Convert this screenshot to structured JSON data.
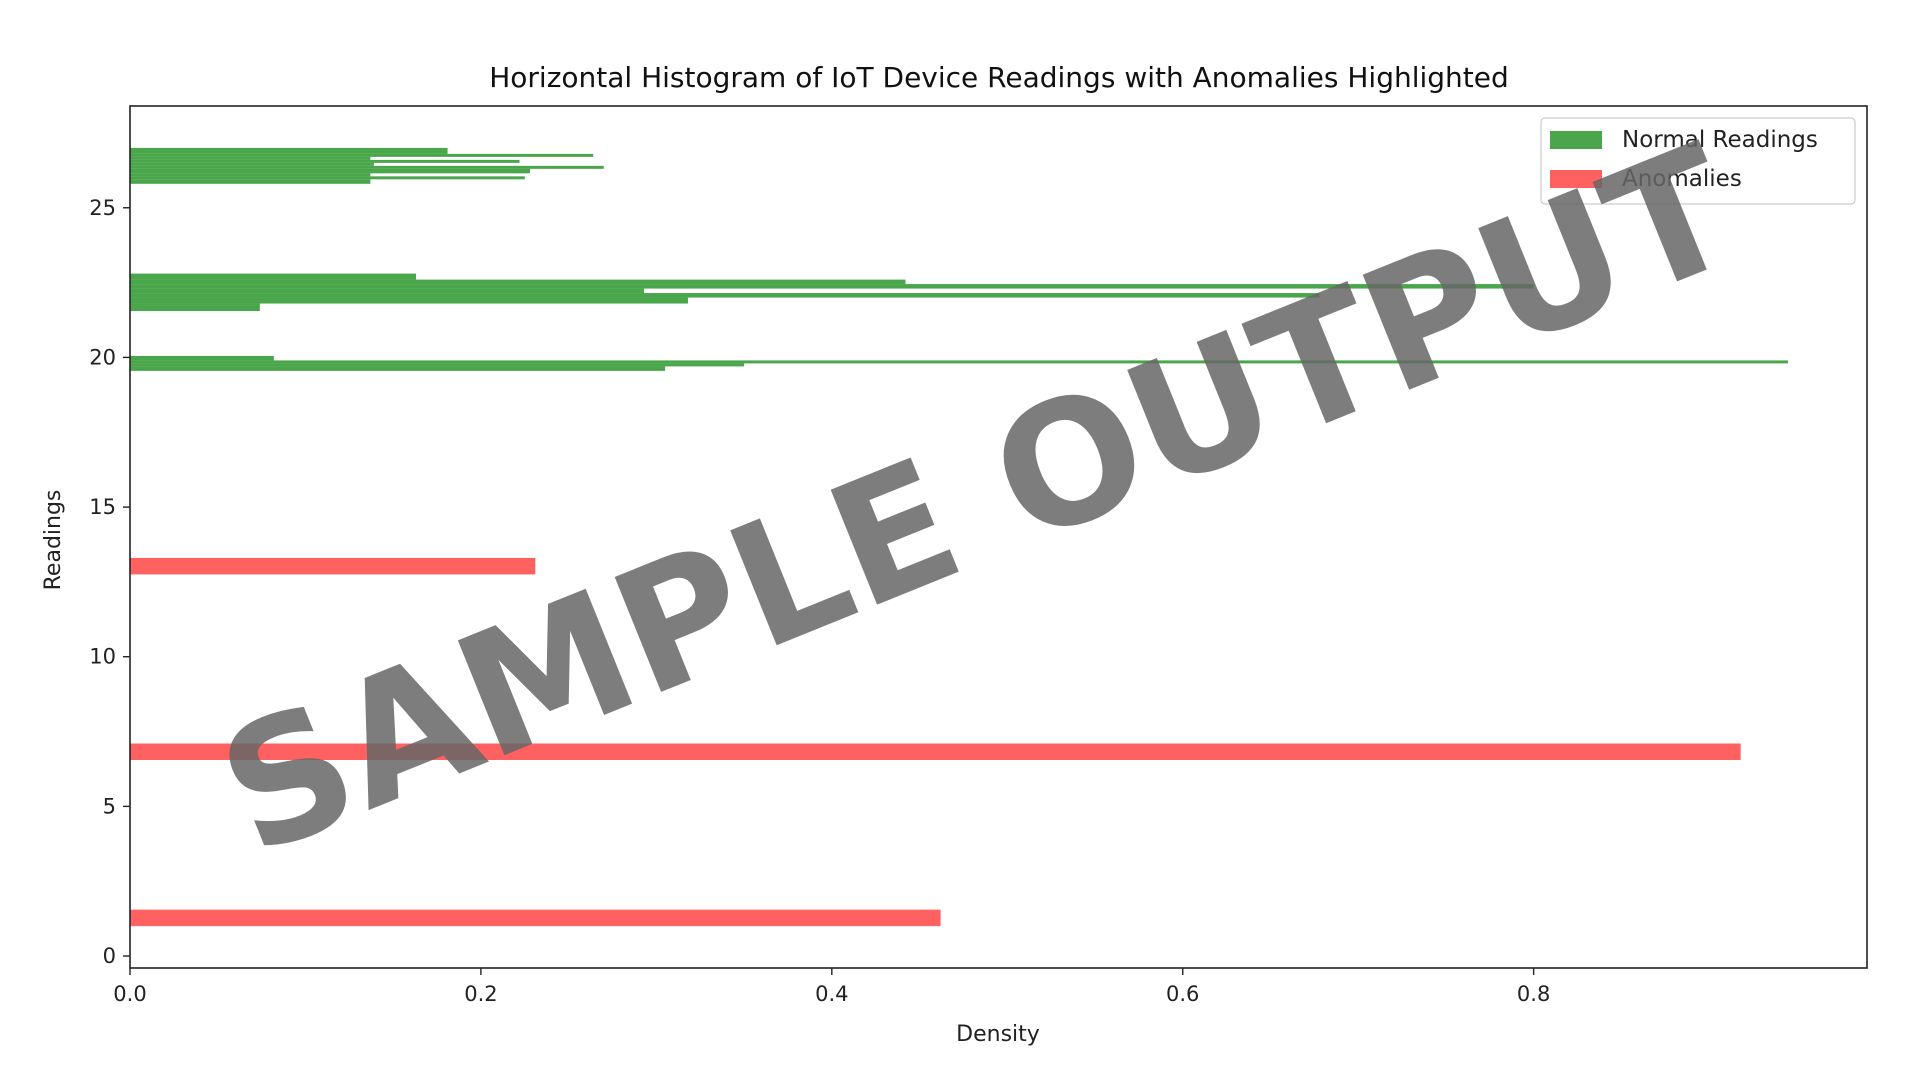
{
  "chart_data": {
    "type": "bar",
    "orientation": "horizontal",
    "title": "Horizontal Histogram of IoT Device Readings with Anomalies Highlighted",
    "xlabel": "Density",
    "ylabel": "Readings",
    "xlim": [
      0,
      0.99
    ],
    "ylim": [
      -0.4,
      28.4
    ],
    "xticks": [
      0.0,
      0.2,
      0.4,
      0.6,
      0.8
    ],
    "xtick_labels": [
      "0.0",
      "0.2",
      "0.4",
      "0.6",
      "0.8"
    ],
    "yticks": [
      0,
      5,
      10,
      15,
      20,
      25
    ],
    "ytick_labels": [
      "0",
      "5",
      "10",
      "15",
      "20",
      "25"
    ],
    "grid": false,
    "legend_position": "top-right",
    "series": [
      {
        "name": "Normal Readings",
        "color": "#2a962a",
        "bars": [
          {
            "y_start": 19.55,
            "y_end": 19.7,
            "value": 0.305
          },
          {
            "y_start": 19.7,
            "y_end": 19.8,
            "value": 0.35
          },
          {
            "y_start": 19.8,
            "y_end": 19.9,
            "value": 0.945
          },
          {
            "y_start": 19.9,
            "y_end": 20.05,
            "value": 0.082
          },
          {
            "y_start": 21.55,
            "y_end": 21.8,
            "value": 0.074
          },
          {
            "y_start": 21.8,
            "y_end": 22.0,
            "value": 0.318
          },
          {
            "y_start": 22.0,
            "y_end": 22.15,
            "value": 0.678
          },
          {
            "y_start": 22.15,
            "y_end": 22.3,
            "value": 0.293
          },
          {
            "y_start": 22.3,
            "y_end": 22.45,
            "value": 0.8
          },
          {
            "y_start": 22.45,
            "y_end": 22.6,
            "value": 0.442
          },
          {
            "y_start": 22.6,
            "y_end": 22.8,
            "value": 0.163
          },
          {
            "y_start": 25.8,
            "y_end": 25.95,
            "value": 0.137
          },
          {
            "y_start": 25.95,
            "y_end": 26.05,
            "value": 0.225
          },
          {
            "y_start": 26.05,
            "y_end": 26.15,
            "value": 0.137
          },
          {
            "y_start": 26.15,
            "y_end": 26.3,
            "value": 0.228
          },
          {
            "y_start": 26.3,
            "y_end": 26.4,
            "value": 0.27
          },
          {
            "y_start": 26.4,
            "y_end": 26.5,
            "value": 0.139
          },
          {
            "y_start": 26.5,
            "y_end": 26.6,
            "value": 0.222
          },
          {
            "y_start": 26.6,
            "y_end": 26.7,
            "value": 0.137
          },
          {
            "y_start": 26.7,
            "y_end": 26.8,
            "value": 0.264
          },
          {
            "y_start": 26.8,
            "y_end": 27.0,
            "value": 0.181
          }
        ]
      },
      {
        "name": "Anomalies",
        "color": "#ff4444",
        "bars": [
          {
            "y_start": 1.0,
            "y_end": 1.55,
            "value": 0.462
          },
          {
            "y_start": 6.55,
            "y_end": 7.1,
            "value": 0.918
          },
          {
            "y_start": 12.75,
            "y_end": 13.3,
            "value": 0.231
          }
        ]
      }
    ]
  },
  "watermark": "SAMPLE OUTPUT"
}
